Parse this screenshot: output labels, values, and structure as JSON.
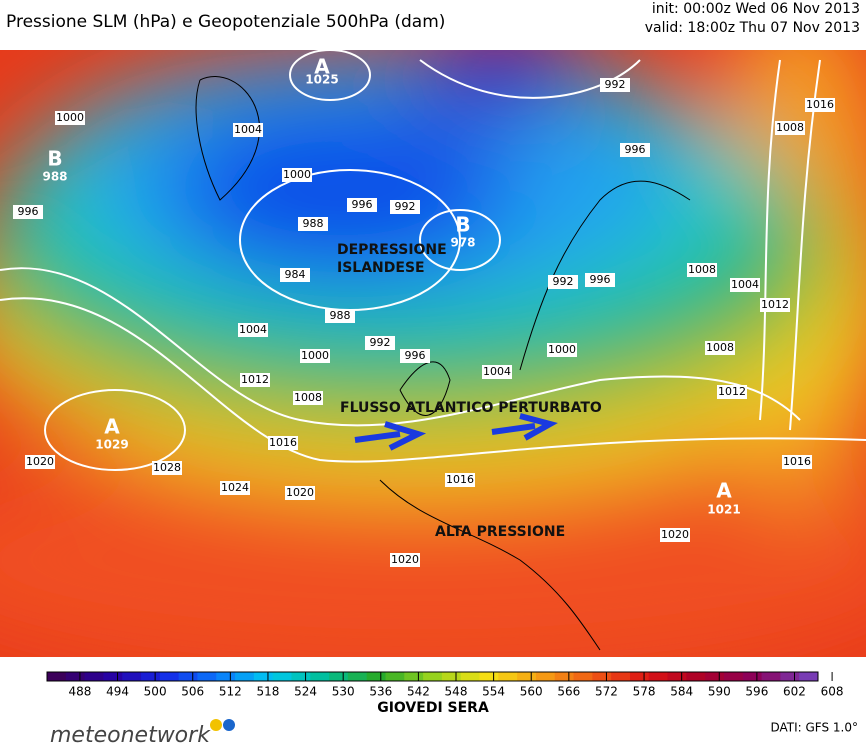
{
  "header": {
    "title": "Pressione SLM (hPa) e Geopotenziale 500hPa (dam)",
    "init": "init: 00:00z Wed 06 Nov 2013",
    "valid": "valid: 18:00z Thu 07 Nov 2013"
  },
  "map": {
    "centers": [
      {
        "letter": "A",
        "value": "1025"
      },
      {
        "letter": "B",
        "value": "978"
      },
      {
        "letter": "A",
        "value": "1029"
      },
      {
        "letter": "A",
        "value": "1021"
      },
      {
        "letter": "B",
        "value": "988"
      }
    ],
    "isobar_labels": [
      "1000",
      "1004",
      "992",
      "1016",
      "1008",
      "996",
      "1000",
      "996",
      "988",
      "996",
      "992",
      "984",
      "988",
      "992",
      "1004",
      "1000",
      "996",
      "1012",
      "1008",
      "1004",
      "1000",
      "1008",
      "992",
      "996",
      "1008",
      "1004",
      "1012",
      "1012",
      "1016",
      "1020",
      "1028",
      "1024",
      "1020",
      "1016",
      "1016",
      "1020",
      "1020"
    ],
    "annotations": [
      "DEPRESSIONE",
      "ISLANDESE",
      "FLUSSO ATLANTICO PERTURBATO",
      "ALTA PRESSIONE"
    ]
  },
  "colorbar": {
    "ticks": [
      "488",
      "494",
      "500",
      "506",
      "512",
      "518",
      "524",
      "530",
      "536",
      "542",
      "548",
      "554",
      "560",
      "566",
      "572",
      "578",
      "584",
      "590",
      "596",
      "602",
      "608"
    ],
    "label": "GIOVEDI SERA"
  },
  "footer": {
    "logo": "meteonetwork",
    "source": "DATI:  GFS 1.0°"
  }
}
